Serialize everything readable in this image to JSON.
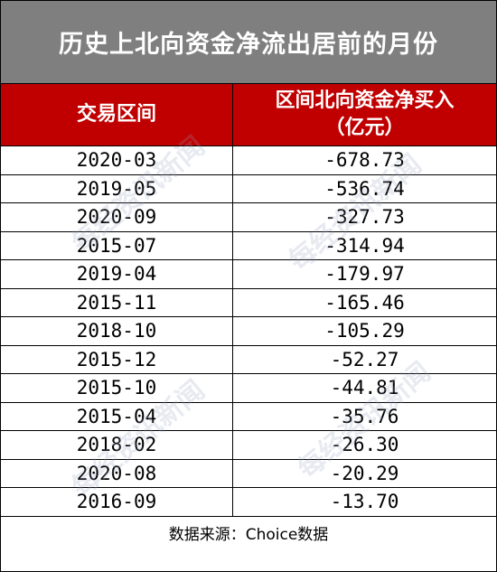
{
  "title": "历史上北向资金净流出居前的月份",
  "header": {
    "col1": "交易区间",
    "col2_line1": "区间北向资金净买入",
    "col2_line2": "（亿元）"
  },
  "rows": [
    {
      "period": "2020-03",
      "value": "-678.73"
    },
    {
      "period": "2019-05",
      "value": "-536.74"
    },
    {
      "period": "2020-09",
      "value": "-327.73"
    },
    {
      "period": "2015-07",
      "value": "-314.94"
    },
    {
      "period": "2019-04",
      "value": "-179.97"
    },
    {
      "period": "2015-11",
      "value": "-165.46"
    },
    {
      "period": "2018-10",
      "value": "-105.29"
    },
    {
      "period": "2015-12",
      "value": "-52.27"
    },
    {
      "period": "2015-10",
      "value": "-44.81"
    },
    {
      "period": "2015-04",
      "value": "-35.76"
    },
    {
      "period": "2018-02",
      "value": "-26.30"
    },
    {
      "period": "2020-08",
      "value": "-20.29"
    },
    {
      "period": "2016-09",
      "value": "-13.70"
    }
  ],
  "footer": "数据来源：Choice数据",
  "watermark": "每经资讯新闻",
  "colors": {
    "title_bg": "#7f7f7f",
    "header_bg": "#c00000",
    "text_on_dark": "#ffffff"
  }
}
